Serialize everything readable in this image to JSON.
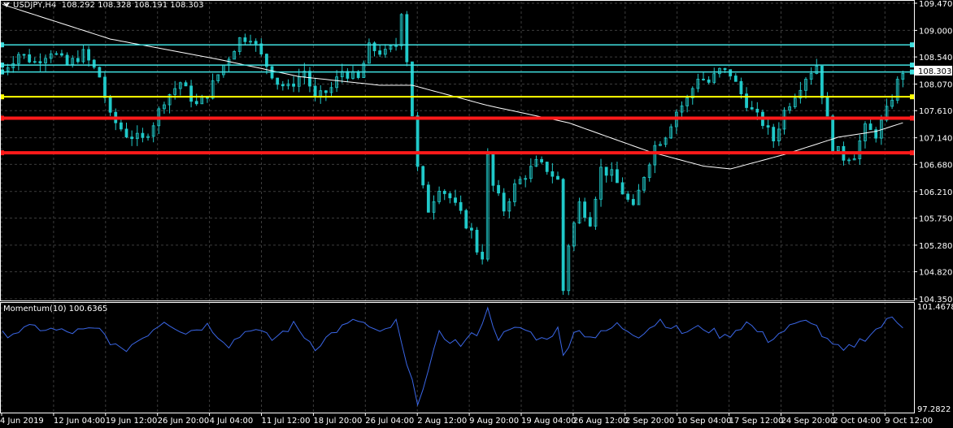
{
  "header": {
    "symbol": "USDJPY,H4",
    "ohlc": "108.292 108.328 108.191 108.303"
  },
  "momentum": {
    "label": "Momentum(10) 100.6365"
  },
  "colors": {
    "background": "#000000",
    "grid": "#3c3c3c",
    "axis": "#ffffff",
    "candle": "#20c9c9",
    "ma": "#ffffff",
    "momentum": "#3a66e6",
    "cyan_line": "#40e0e0",
    "yellow_line": "#ffff00",
    "red_line": "#ff1a1a",
    "price_tag_bg": "#ffffff",
    "price_tag_text": "#000000"
  },
  "chart_data": [
    {
      "type": "candlestick",
      "title": "USDJPY,H4",
      "y_ticks": [
        "109.470",
        "109.000",
        "108.540",
        "108.070",
        "107.610",
        "107.140",
        "106.680",
        "106.210",
        "105.750",
        "105.280",
        "104.820",
        "104.350"
      ],
      "ylim": [
        104.35,
        109.47
      ],
      "current_price": "108.303",
      "x_ticks": [
        "4 Jun 2019",
        "12 Jun 04:00",
        "19 Jun 12:00",
        "26 Jun 20:00",
        "4 Jul 04:00",
        "11 Jul 12:00",
        "18 Jul 20:00",
        "26 Jul 04:00",
        "2 Aug 12:00",
        "9 Aug 20:00",
        "19 Aug 04:00",
        "26 Aug 12:00",
        "2 Sep 20:00",
        "10 Sep 04:00",
        "17 Sep 12:00",
        "24 Sep 20:00",
        "2 Oct 04:00",
        "9 Oct 12:00"
      ],
      "price_path": [
        [
          0,
          108.3
        ],
        [
          3,
          108.6
        ],
        [
          6,
          108.45
        ],
        [
          9,
          108.65
        ],
        [
          12,
          108.4
        ],
        [
          15,
          108.6
        ],
        [
          18,
          108.2
        ],
        [
          20,
          107.5
        ],
        [
          23,
          107.2
        ],
        [
          26,
          107.1
        ],
        [
          28,
          107.4
        ],
        [
          30,
          107.8
        ],
        [
          33,
          108.1
        ],
        [
          36,
          107.7
        ],
        [
          38,
          107.9
        ],
        [
          41,
          108.4
        ],
        [
          44,
          108.85
        ],
        [
          46,
          108.9
        ],
        [
          48,
          108.55
        ],
        [
          51,
          108.1
        ],
        [
          53,
          108.0
        ],
        [
          56,
          108.3
        ],
        [
          58,
          107.8
        ],
        [
          61,
          108.0
        ],
        [
          63,
          108.3
        ],
        [
          66,
          108.15
        ],
        [
          68,
          108.7
        ],
        [
          71,
          108.6
        ],
        [
          73,
          108.75
        ],
        [
          74,
          109.35
        ],
        [
          75,
          108.5
        ],
        [
          77,
          106.6
        ],
        [
          79,
          105.9
        ],
        [
          81,
          106.3
        ],
        [
          83,
          106.1
        ],
        [
          85,
          105.8
        ],
        [
          87,
          105.5
        ],
        [
          88,
          105.2
        ],
        [
          89,
          105.1
        ],
        [
          90,
          106.8
        ],
        [
          91,
          106.3
        ],
        [
          93,
          105.9
        ],
        [
          95,
          106.3
        ],
        [
          97,
          106.5
        ],
        [
          99,
          106.7
        ],
        [
          101,
          106.6
        ],
        [
          103,
          106.4
        ],
        [
          104,
          104.5
        ],
        [
          105,
          105.3
        ],
        [
          107,
          106.0
        ],
        [
          109,
          105.7
        ],
        [
          111,
          106.6
        ],
        [
          113,
          106.5
        ],
        [
          115,
          106.2
        ],
        [
          117,
          105.9
        ],
        [
          119,
          106.5
        ],
        [
          121,
          107.0
        ],
        [
          123,
          107.2
        ],
        [
          125,
          107.6
        ],
        [
          127,
          107.8
        ],
        [
          129,
          108.2
        ],
        [
          131,
          108.1
        ],
        [
          133,
          108.3
        ],
        [
          135,
          108.25
        ],
        [
          137,
          107.9
        ],
        [
          139,
          107.6
        ],
        [
          141,
          107.4
        ],
        [
          143,
          107.1
        ],
        [
          145,
          107.6
        ],
        [
          147,
          107.9
        ],
        [
          149,
          108.2
        ],
        [
          151,
          108.4
        ],
        [
          152,
          107.9
        ],
        [
          154,
          107.0
        ],
        [
          156,
          106.8
        ],
        [
          158,
          106.85
        ],
        [
          160,
          107.3
        ],
        [
          162,
          107.2
        ],
        [
          164,
          107.6
        ],
        [
          166,
          108.1
        ],
        [
          167,
          108.3
        ]
      ],
      "moving_average": [
        [
          0,
          109.45
        ],
        [
          20,
          108.85
        ],
        [
          40,
          108.5
        ],
        [
          55,
          108.2
        ],
        [
          70,
          108.05
        ],
        [
          76,
          108.05
        ],
        [
          90,
          107.7
        ],
        [
          105,
          107.4
        ],
        [
          120,
          106.9
        ],
        [
          130,
          106.65
        ],
        [
          135,
          106.6
        ],
        [
          145,
          106.85
        ],
        [
          155,
          107.15
        ],
        [
          162,
          107.25
        ],
        [
          167,
          107.4
        ]
      ],
      "horizontal_lines": [
        {
          "price": 108.75,
          "color": "cyan"
        },
        {
          "price": 108.4,
          "color": "cyan"
        },
        {
          "price": 108.28,
          "color": "cyan"
        },
        {
          "price": 107.85,
          "color": "yellow"
        },
        {
          "price": 107.48,
          "color": "red"
        },
        {
          "price": 106.88,
          "color": "red"
        }
      ]
    },
    {
      "type": "line",
      "title": "Momentum(10) 100.6365",
      "y_ticks": [
        "101.4678",
        "97.2822"
      ],
      "ylim": [
        97.2822,
        101.4678
      ],
      "series": [
        {
          "name": "Momentum(10)",
          "values": [
            [
              0,
              100.3
            ],
            [
              6,
              100.6
            ],
            [
              12,
              100.4
            ],
            [
              18,
              100.5
            ],
            [
              22,
              99.6
            ],
            [
              26,
              100.2
            ],
            [
              30,
              100.9
            ],
            [
              34,
              100.4
            ],
            [
              38,
              100.7
            ],
            [
              42,
              99.9
            ],
            [
              46,
              100.6
            ],
            [
              50,
              100.1
            ],
            [
              54,
              100.7
            ],
            [
              58,
              99.8
            ],
            [
              62,
              100.5
            ],
            [
              66,
              100.9
            ],
            [
              70,
              100.3
            ],
            [
              73,
              100.8
            ],
            [
              75,
              99.0
            ],
            [
              77,
              97.6
            ],
            [
              79,
              98.8
            ],
            [
              81,
              100.3
            ],
            [
              85,
              99.9
            ],
            [
              88,
              100.4
            ],
            [
              90,
              101.3
            ],
            [
              92,
              100.2
            ],
            [
              96,
              100.6
            ],
            [
              100,
              100.1
            ],
            [
              103,
              100.5
            ],
            [
              104,
              99.4
            ],
            [
              106,
              100.5
            ],
            [
              110,
              100.2
            ],
            [
              114,
              100.7
            ],
            [
              118,
              100.3
            ],
            [
              122,
              100.9
            ],
            [
              126,
              100.4
            ],
            [
              130,
              100.6
            ],
            [
              134,
              100.2
            ],
            [
              138,
              100.8
            ],
            [
              142,
              100.1
            ],
            [
              146,
              100.6
            ],
            [
              150,
              100.9
            ],
            [
              153,
              100.0
            ],
            [
              156,
              99.6
            ],
            [
              158,
              99.9
            ],
            [
              162,
              100.5
            ],
            [
              165,
              101.0
            ],
            [
              167,
              100.7
            ]
          ]
        }
      ]
    }
  ]
}
